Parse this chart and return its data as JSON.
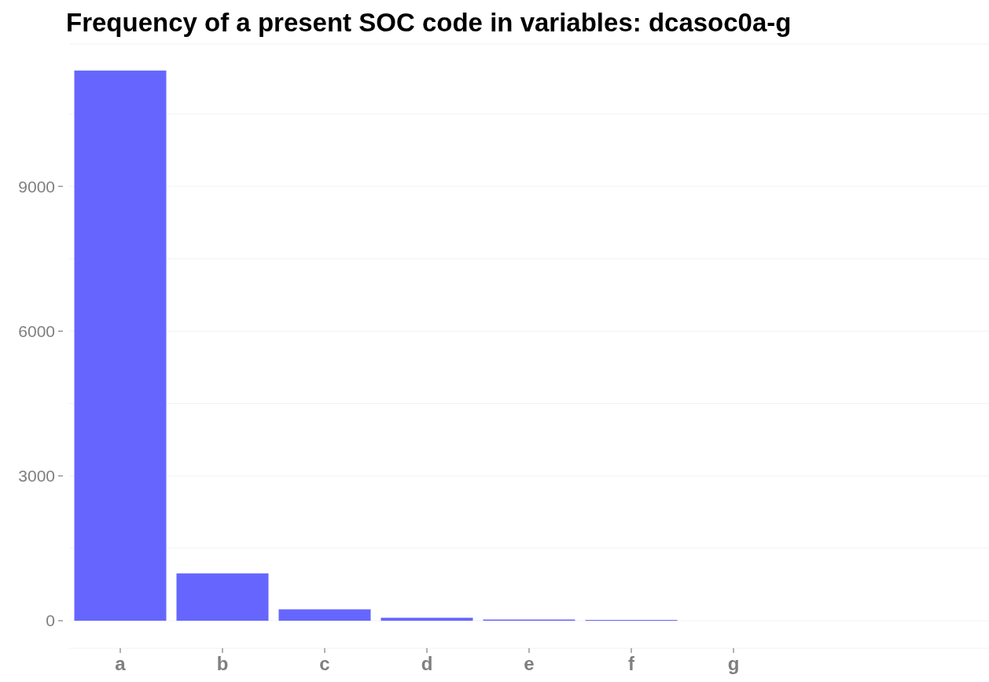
{
  "chart_data": {
    "type": "bar",
    "title": "Frequency of a present SOC code in variables: dcasoc0a-g",
    "categories": [
      "a",
      "b",
      "c",
      "d",
      "e",
      "f",
      "g",
      null,
      null
    ],
    "values": [
      11400,
      980,
      235,
      60,
      25,
      15,
      0,
      null,
      null
    ],
    "color": "#6666ff",
    "ylim": [
      -570,
      11950
    ],
    "yticks": [
      0,
      {
        "value": 1500,
        "label": null
      },
      3000,
      {
        "value": 4500,
        "label": null
      },
      6000,
      {
        "value": 7500,
        "label": null
      },
      9000,
      {
        "value": 10500,
        "label": null
      }
    ],
    "grid": "y"
  }
}
